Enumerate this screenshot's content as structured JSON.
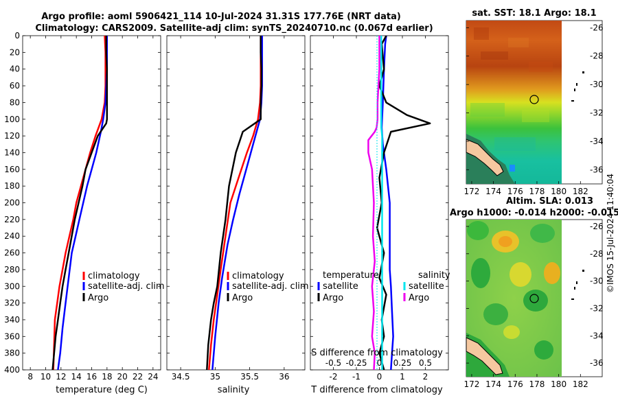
{
  "main_title": {
    "line1": "Argo profile: aoml 5906421_114 10-Jul-2024 31.31S 177.76E (NRT data)",
    "line2": "Climatology: CARS2009. Satellite-adj clim: synTS_20240710.nc (0.067d earlier)"
  },
  "colors": {
    "climatology": "#ff0000",
    "satellite": "#0000ff",
    "argo": "#000000",
    "sal_satellite": "#00e5ee",
    "sal_argo": "#ee00ee"
  },
  "chart_data": [
    {
      "type": "line",
      "name": "temperature-profile",
      "xlabel": "temperature (deg C)",
      "ylabel": "",
      "xlim": [
        7,
        25
      ],
      "ylim": [
        0,
        400
      ],
      "xticks": [
        8,
        10,
        12,
        14,
        16,
        18,
        20,
        22,
        24
      ],
      "yticks": [
        0,
        20,
        40,
        60,
        80,
        100,
        120,
        140,
        160,
        180,
        200,
        220,
        240,
        260,
        280,
        300,
        320,
        340,
        360,
        380,
        400
      ],
      "legend": [
        "climatology",
        "satellite-adj. clim",
        "Argo"
      ],
      "series": [
        {
          "name": "climatology",
          "x": [
            17.7,
            17.8,
            17.8,
            17.8,
            17.7,
            17.3,
            16.5,
            15.8,
            15.2,
            14.6,
            14.0,
            13.6,
            13.1,
            12.6,
            12.2,
            11.8,
            11.5,
            11.2,
            11.0
          ],
          "depth": [
            0,
            20,
            40,
            60,
            80,
            100,
            120,
            140,
            160,
            180,
            200,
            220,
            240,
            260,
            280,
            300,
            320,
            340,
            400
          ]
        },
        {
          "name": "satellite-adj. clim",
          "x": [
            18.0,
            18.0,
            18.0,
            17.9,
            17.8,
            17.5,
            17.2,
            16.6,
            16.0,
            15.4,
            14.9,
            14.4,
            13.9,
            13.4,
            13.0,
            12.6,
            12.2,
            11.9,
            11.6
          ],
          "depth": [
            0,
            20,
            40,
            60,
            80,
            100,
            115,
            140,
            160,
            180,
            200,
            220,
            240,
            260,
            290,
            320,
            350,
            380,
            400
          ]
        },
        {
          "name": "Argo",
          "x": [
            17.9,
            17.9,
            18.0,
            18.0,
            18.0,
            18.0,
            17.9,
            16.8,
            16.0,
            15.2,
            14.8,
            14.3,
            13.8,
            13.0,
            12.6,
            12.2,
            11.9,
            11.6,
            11.3,
            11.1,
            10.9
          ],
          "depth": [
            0,
            20,
            40,
            60,
            80,
            100,
            105,
            120,
            140,
            160,
            180,
            200,
            220,
            260,
            280,
            300,
            320,
            340,
            360,
            380,
            400
          ]
        }
      ]
    },
    {
      "type": "line",
      "name": "salinity-profile",
      "xlabel": "salinity",
      "ylabel": "",
      "xlim": [
        34.3,
        36.3
      ],
      "ylim": [
        0,
        400
      ],
      "xticks": [
        34.5,
        35,
        35.5,
        36
      ],
      "xtick_labels": [
        "34.5",
        "35",
        "35.5",
        "36"
      ],
      "legend": [
        "climatology",
        "satellite-adj. clim",
        "Argo"
      ],
      "series": [
        {
          "name": "climatology",
          "x": [
            35.66,
            35.66,
            35.66,
            35.66,
            35.65,
            35.62,
            35.55,
            35.46,
            35.38,
            35.3,
            35.22,
            35.15,
            35.08,
            35.03,
            34.98,
            34.94,
            34.91
          ],
          "depth": [
            0,
            20,
            40,
            60,
            80,
            100,
            120,
            140,
            160,
            180,
            200,
            240,
            280,
            310,
            340,
            370,
            400
          ]
        },
        {
          "name": "satellite-adj. clim",
          "x": [
            35.68,
            35.68,
            35.68,
            35.68,
            35.67,
            35.65,
            35.55,
            35.45,
            35.35,
            35.26,
            35.18,
            35.1,
            35.05,
            35.0,
            34.96
          ],
          "depth": [
            0,
            20,
            40,
            60,
            80,
            100,
            130,
            160,
            190,
            220,
            250,
            290,
            320,
            360,
            400
          ]
        },
        {
          "name": "Argo",
          "x": [
            35.66,
            35.66,
            35.67,
            35.67,
            35.66,
            35.66,
            35.4,
            35.3,
            35.25,
            35.2,
            35.15,
            35.08,
            35.03,
            34.98,
            34.94,
            34.9,
            34.88
          ],
          "depth": [
            0,
            20,
            40,
            60,
            80,
            100,
            115,
            140,
            160,
            180,
            220,
            260,
            300,
            320,
            340,
            370,
            400
          ]
        }
      ]
    },
    {
      "type": "line",
      "name": "difference-profile",
      "xlabel": "T difference from climatology",
      "xlabel_top": "S difference from climatology",
      "ylabel": "",
      "xlim": [
        -3,
        3
      ],
      "ylim": [
        0,
        400
      ],
      "xticks": [
        -2,
        -1,
        0,
        1,
        2
      ],
      "xtick_labels": [
        "-2",
        "-1",
        "0",
        "1",
        "2"
      ],
      "sticks": [
        -0.5,
        -0.25,
        0,
        0.25,
        0.5
      ],
      "stick_labels": [
        "-0.5",
        "-0.25",
        "0",
        "0.25",
        "0.5"
      ],
      "slim": [
        -0.75,
        0.75
      ],
      "legend_temperature": {
        "title": "temperature",
        "items": [
          "satellite",
          "Argo"
        ]
      },
      "legend_salinity": {
        "title": "salinity",
        "items": [
          "satellite",
          "Argo"
        ]
      },
      "series": [
        {
          "name": "T satellite",
          "x": [
            0.3,
            0.25,
            0.2,
            0.15,
            0.1,
            0.15,
            0.3,
            0.45,
            0.45,
            0.45,
            0.5,
            0.55,
            0.6,
            0.55,
            0.5
          ],
          "depth": [
            0,
            10,
            40,
            80,
            110,
            130,
            160,
            200,
            240,
            280,
            300,
            330,
            360,
            380,
            400
          ]
        },
        {
          "name": "T Argo",
          "x": [
            0.3,
            0.1,
            0.2,
            0.0,
            0.3,
            1.2,
            2.2,
            0.5,
            0.2,
            0.0,
            0.1,
            -0.1,
            0.2,
            0.0,
            0.3,
            0.1,
            0.2,
            0.0,
            0.2
          ],
          "depth": [
            0,
            10,
            40,
            60,
            80,
            95,
            105,
            115,
            140,
            170,
            200,
            230,
            260,
            290,
            310,
            340,
            360,
            380,
            400
          ]
        },
        {
          "name": "S satellite",
          "x": [
            0.02,
            0.02,
            0.02,
            0.02,
            0.03,
            0.03,
            0.03,
            0.03
          ],
          "depth": [
            0,
            40,
            80,
            110,
            120,
            200,
            300,
            400
          ]
        },
        {
          "name": "S Argo",
          "x": [
            0.0,
            0.0,
            -0.02,
            -0.02,
            -0.03,
            -0.05,
            -0.12,
            -0.12,
            -0.08,
            -0.06,
            -0.07,
            -0.05,
            -0.08,
            -0.06,
            -0.08,
            -0.05,
            -0.06
          ],
          "depth": [
            0,
            40,
            80,
            100,
            110,
            115,
            125,
            140,
            160,
            200,
            240,
            270,
            300,
            330,
            360,
            380,
            400
          ]
        }
      ]
    },
    {
      "type": "heatmap",
      "name": "sst-map",
      "title": "sat. SST: 18.1 Argo: 18.1",
      "xticks": [
        172,
        174,
        176,
        178,
        180,
        182
      ],
      "yticks": [
        -26,
        -28,
        -30,
        -32,
        -34,
        -36
      ],
      "xlim": [
        171.5,
        184
      ],
      "ylim": [
        -37,
        -25.5
      ],
      "marker": {
        "lon": 177.76,
        "lat": -31.31
      }
    },
    {
      "type": "heatmap",
      "name": "sla-map",
      "title_line1": "Altim. SLA: 0.013",
      "title_line2": "Argo h1000: -0.014 h2000: -0.015",
      "xticks": [
        172,
        174,
        176,
        178,
        180,
        182
      ],
      "yticks": [
        -26,
        -28,
        -30,
        -32,
        -34,
        -36
      ],
      "xlim": [
        171.5,
        184
      ],
      "ylim": [
        -37,
        -25.5
      ],
      "marker": {
        "lon": 177.76,
        "lat": -31.31
      }
    }
  ],
  "watermark": "©IMOS 15-Jul-2024 11:40:04"
}
